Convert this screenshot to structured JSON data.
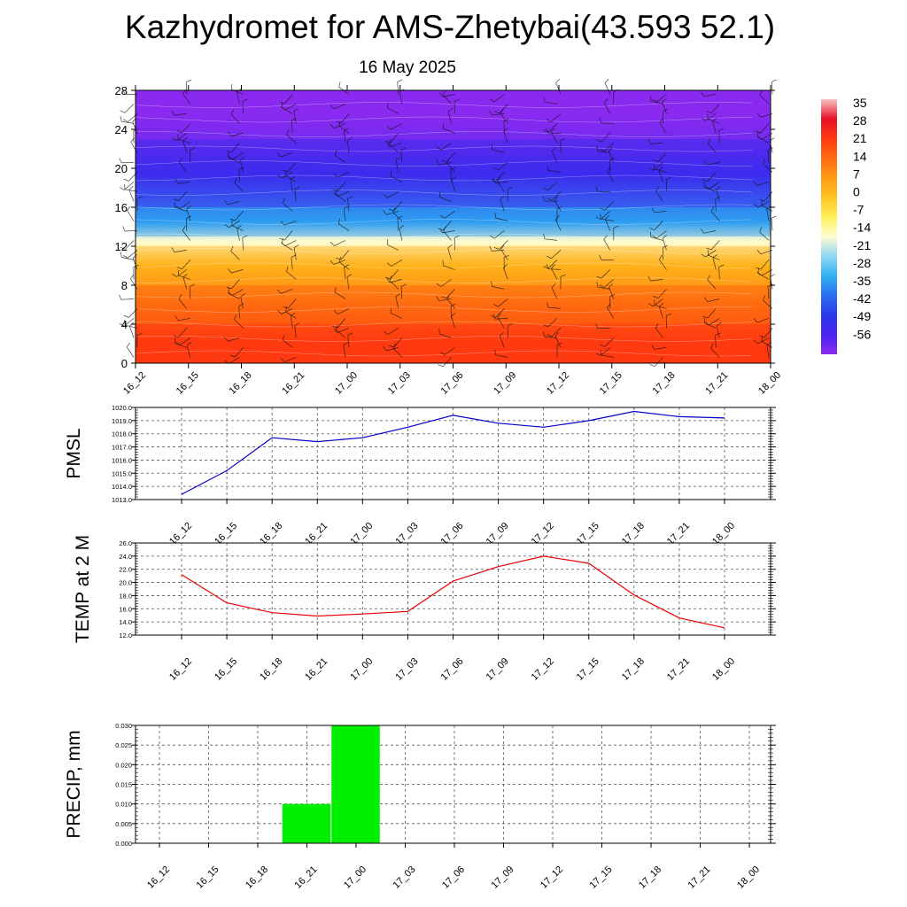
{
  "title": "Kazhydromet for AMS-Zhetybai(43.593 52.1)",
  "subtitle": "16 May 2025",
  "time_labels": [
    "16_12",
    "16_15",
    "16_18",
    "16_21",
    "17_00",
    "17_03",
    "17_06",
    "17_09",
    "17_12",
    "17_15",
    "17_18",
    "17_21",
    "18_00"
  ],
  "colorbar": {
    "labels": [
      "35",
      "28",
      "21",
      "14",
      "7",
      "0",
      "-7",
      "-14",
      "-21",
      "-28",
      "-35",
      "-42",
      "-49",
      "-56"
    ],
    "stops": [
      "#f7c2c2",
      "#e8102a",
      "#ff3a10",
      "#ff6a10",
      "#ff9a15",
      "#ffc420",
      "#fff05a",
      "#fffcd0",
      "#8fd8f5",
      "#30b0f0",
      "#2a6ef0",
      "#2b3ae8",
      "#4a22f2",
      "#8a2af0"
    ]
  },
  "chart_data": [
    {
      "type": "heatmap",
      "title": "Kazhydromet for AMS-Zhetybai(43.593 52.1)",
      "subtitle": "16 May 2025",
      "x": [
        "16_12",
        "16_15",
        "16_18",
        "16_21",
        "17_00",
        "17_03",
        "17_06",
        "17_09",
        "17_12",
        "17_15",
        "17_18",
        "17_21",
        "18_00"
      ],
      "ylim": [
        0,
        28
      ],
      "yticks": [
        0,
        4,
        8,
        12,
        16,
        20,
        24,
        28
      ],
      "color_range": [
        -56,
        35
      ],
      "bands": [
        {
          "from": 0,
          "to": 4,
          "value": 21
        },
        {
          "from": 4,
          "to": 8,
          "value": 14
        },
        {
          "from": 8,
          "to": 12,
          "value": 3
        },
        {
          "from": 12,
          "to": 13,
          "value": -14
        },
        {
          "from": 13,
          "to": 16,
          "value": -30
        },
        {
          "from": 16,
          "to": 23,
          "value": -46
        },
        {
          "from": 23,
          "to": 28,
          "value": -58
        }
      ],
      "overlay": "wind barbs"
    },
    {
      "type": "line",
      "ylabel": "PMSL",
      "x": [
        "16_12",
        "16_15",
        "16_18",
        "16_21",
        "17_00",
        "17_03",
        "17_06",
        "17_09",
        "17_12",
        "17_15",
        "17_18",
        "17_21",
        "18_00"
      ],
      "series": [
        {
          "color": "#0000cc",
          "values": [
            1013.4,
            1015.2,
            1017.7,
            1017.4,
            1017.7,
            1018.5,
            1019.4,
            1018.8,
            1018.5,
            1019.0,
            1019.7,
            1019.3,
            1019.2
          ]
        }
      ],
      "ylim": [
        1013.0,
        1020.0
      ],
      "yticks": [
        "1013.0",
        "1014.0",
        "1015.0",
        "1016.0",
        "1017.0",
        "1018.0",
        "1019.0",
        "1020.0"
      ],
      "grid": true
    },
    {
      "type": "line",
      "ylabel": "TEMP at 2 M",
      "x": [
        "16_12",
        "16_15",
        "16_18",
        "16_21",
        "17_00",
        "17_03",
        "17_06",
        "17_09",
        "17_12",
        "17_15",
        "17_18",
        "17_21",
        "18_00"
      ],
      "series": [
        {
          "color": "#ee0000",
          "values": [
            21.2,
            16.9,
            15.4,
            14.9,
            15.2,
            15.6,
            20.2,
            22.4,
            24.0,
            22.9,
            18.1,
            14.6,
            13.1
          ]
        }
      ],
      "ylim": [
        12.0,
        26.0
      ],
      "yticks": [
        "12.0",
        "14.0",
        "16.0",
        "18.0",
        "20.0",
        "22.0",
        "24.0",
        "26.0"
      ],
      "grid": true
    },
    {
      "type": "bar",
      "ylabel": "PRECIP, mm",
      "x": [
        "16_12",
        "16_15",
        "16_18",
        "16_21",
        "17_00",
        "17_03",
        "17_06",
        "17_09",
        "17_12",
        "17_15",
        "17_18",
        "17_21",
        "18_00"
      ],
      "series": [
        {
          "color": "#00ee00",
          "values": [
            0,
            0,
            0,
            0.01,
            0.03,
            0,
            0,
            0,
            0,
            0,
            0,
            0,
            0
          ]
        }
      ],
      "ylim": [
        0,
        0.03
      ],
      "yticks": [
        "0.000",
        "0.005",
        "0.010",
        "0.015",
        "0.020",
        "0.025",
        "0.030"
      ],
      "grid": true
    }
  ]
}
